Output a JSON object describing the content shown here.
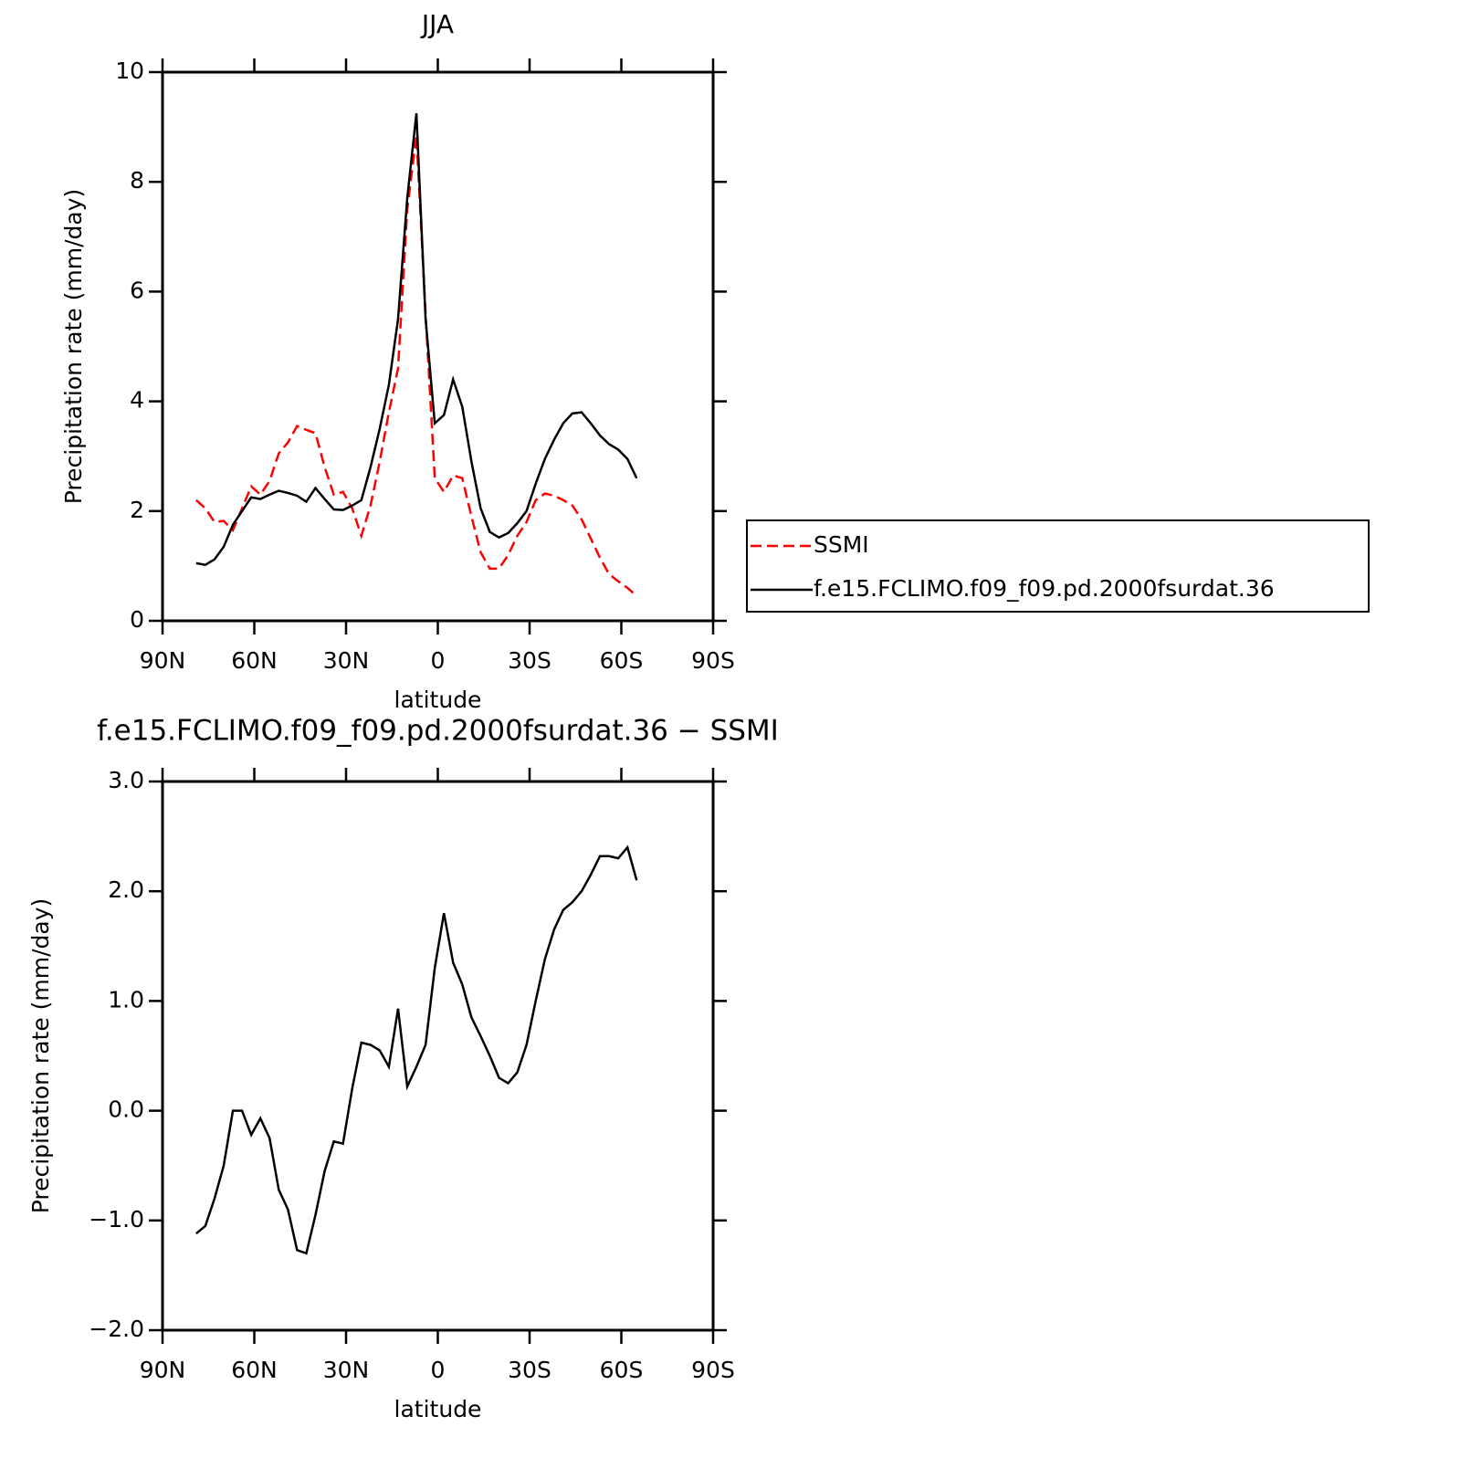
{
  "chart_data": [
    {
      "type": "line",
      "title": "JJA",
      "xlabel": "latitude",
      "ylabel": "Precipitation rate (mm/day)",
      "x": [
        79,
        76,
        73,
        70,
        67,
        64,
        61,
        58,
        55,
        52,
        49,
        46,
        43,
        40,
        37,
        34,
        31,
        28,
        25,
        22,
        19,
        16,
        13,
        10,
        7,
        4,
        1,
        -2,
        -5,
        -8,
        -11,
        -14,
        -17,
        -20,
        -23,
        -26,
        -29,
        -32,
        -35,
        -38,
        -41,
        -44,
        -47,
        -50,
        -53,
        -56,
        -59,
        -62,
        -65
      ],
      "xlim": [
        90,
        -90
      ],
      "xticks": [
        {
          "value": 90,
          "label": "90N"
        },
        {
          "value": 60,
          "label": "60N"
        },
        {
          "value": 30,
          "label": "30N"
        },
        0,
        {
          "value": -30,
          "label": "30S"
        },
        {
          "value": -60,
          "label": "60S"
        },
        {
          "value": -90,
          "label": "90S"
        }
      ],
      "ylim": [
        0,
        10
      ],
      "yticks": [
        0,
        2,
        4,
        6,
        8,
        10
      ],
      "legend_position": "right",
      "series": [
        {
          "name": "SSMI",
          "color": "#ff0000",
          "line_style": "dashed",
          "values": [
            2.2,
            2.05,
            1.8,
            1.82,
            1.65,
            2.05,
            2.45,
            2.3,
            2.55,
            3.05,
            3.25,
            3.55,
            3.48,
            3.42,
            2.8,
            2.3,
            2.35,
            2.05,
            1.55,
            2.1,
            2.9,
            3.8,
            4.6,
            7.5,
            8.85,
            5.6,
            2.6,
            2.35,
            2.65,
            2.6,
            1.9,
            1.25,
            0.95,
            0.95,
            1.2,
            1.55,
            1.8,
            2.2,
            2.32,
            2.28,
            2.2,
            2.1,
            1.85,
            1.5,
            1.15,
            0.85,
            0.72,
            0.6,
            0.45
          ]
        },
        {
          "name": "f.e15.FCLIMO.f09_f09.pd.2000fsurdat.36",
          "color": "#000000",
          "line_style": "solid",
          "values": [
            1.05,
            1.02,
            1.12,
            1.35,
            1.75,
            2.0,
            2.25,
            2.22,
            2.3,
            2.37,
            2.33,
            2.28,
            2.17,
            2.42,
            2.22,
            2.03,
            2.02,
            2.1,
            2.2,
            2.8,
            3.5,
            4.3,
            5.5,
            7.7,
            9.25,
            5.5,
            3.6,
            3.75,
            4.4,
            3.9,
            2.9,
            2.05,
            1.62,
            1.52,
            1.6,
            1.78,
            2.0,
            2.5,
            2.95,
            3.3,
            3.6,
            3.78,
            3.8,
            3.6,
            3.38,
            3.22,
            3.12,
            2.95,
            2.6
          ]
        }
      ]
    },
    {
      "type": "line",
      "title": "f.e15.FCLIMO.f09_f09.pd.2000fsurdat.36 − SSMI",
      "xlabel": "latitude",
      "ylabel": "Precipitation rate (mm/day)",
      "x": [
        79,
        76,
        73,
        70,
        67,
        64,
        61,
        58,
        55,
        52,
        49,
        46,
        43,
        40,
        37,
        34,
        31,
        28,
        25,
        22,
        19,
        16,
        13,
        10,
        7,
        4,
        1,
        -2,
        -5,
        -8,
        -11,
        -14,
        -17,
        -20,
        -23,
        -26,
        -29,
        -32,
        -35,
        -38,
        -41,
        -44,
        -47,
        -50,
        -53,
        -56,
        -59,
        -62,
        -65
      ],
      "xlim": [
        90,
        -90
      ],
      "xticks": [
        {
          "value": 90,
          "label": "90N"
        },
        {
          "value": 60,
          "label": "60N"
        },
        {
          "value": 30,
          "label": "30N"
        },
        0,
        {
          "value": -30,
          "label": "30S"
        },
        {
          "value": -60,
          "label": "60S"
        },
        {
          "value": -90,
          "label": "90S"
        }
      ],
      "ylim": [
        -2,
        3
      ],
      "yticks": [
        {
          "value": -2,
          "label": "−2.0"
        },
        {
          "value": -1,
          "label": "−1.0"
        },
        {
          "value": 0,
          "label": "0.0"
        },
        {
          "value": 1,
          "label": "1.0"
        },
        {
          "value": 2,
          "label": "2.0"
        },
        {
          "value": 3,
          "label": "3.0"
        }
      ],
      "color": "#000000",
      "values": [
        -1.12,
        -1.05,
        -0.8,
        -0.5,
        0.0,
        0.0,
        -0.22,
        -0.07,
        -0.25,
        -0.72,
        -0.9,
        -1.27,
        -1.3,
        -0.95,
        -0.55,
        -0.28,
        -0.3,
        0.2,
        0.62,
        0.6,
        0.55,
        0.4,
        0.93,
        0.22,
        0.4,
        0.6,
        1.3,
        1.8,
        1.35,
        1.15,
        0.85,
        0.68,
        0.5,
        0.3,
        0.25,
        0.35,
        0.6,
        1.0,
        1.38,
        1.65,
        1.83,
        1.9,
        2.0,
        2.15,
        2.32,
        2.32,
        2.3,
        2.4,
        2.1
      ]
    }
  ]
}
